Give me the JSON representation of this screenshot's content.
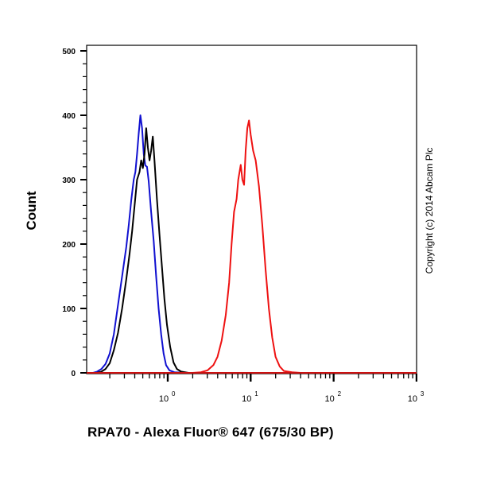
{
  "chart_data": {
    "type": "line",
    "title": "",
    "xlabel": "RPA70 - Alexa Fluor® 647 (675/30 BP)",
    "ylabel": "Count",
    "xscale": "log",
    "xlim_log10": [
      -1,
      3
    ],
    "ylim": [
      0,
      500
    ],
    "y_ticks": [
      0,
      100,
      200,
      300,
      400,
      500
    ],
    "y_minor_step": 20,
    "x_tick_labels": [
      {
        "base": "10",
        "exp": "0",
        "log10": 0
      },
      {
        "base": "10",
        "exp": "1",
        "log10": 1
      },
      {
        "base": "10",
        "exp": "2",
        "log10": 2
      },
      {
        "base": "10",
        "exp": "3",
        "log10": 3
      }
    ],
    "grid": false,
    "legend": null,
    "annotation": "Copyright (c) 2014 Abcam Plc",
    "series": [
      {
        "name": "blue-histogram",
        "color": "#1010d0",
        "points_log10x_count": [
          [
            -1.0,
            0
          ],
          [
            -0.9,
            0
          ],
          [
            -0.85,
            2
          ],
          [
            -0.8,
            6
          ],
          [
            -0.75,
            14
          ],
          [
            -0.7,
            30
          ],
          [
            -0.65,
            60
          ],
          [
            -0.6,
            105
          ],
          [
            -0.55,
            150
          ],
          [
            -0.5,
            195
          ],
          [
            -0.47,
            230
          ],
          [
            -0.44,
            268
          ],
          [
            -0.41,
            300
          ],
          [
            -0.39,
            312
          ],
          [
            -0.37,
            340
          ],
          [
            -0.35,
            372
          ],
          [
            -0.33,
            400
          ],
          [
            -0.31,
            380
          ],
          [
            -0.29,
            340
          ],
          [
            -0.27,
            322
          ],
          [
            -0.25,
            320
          ],
          [
            -0.23,
            298
          ],
          [
            -0.2,
            250
          ],
          [
            -0.17,
            205
          ],
          [
            -0.14,
            150
          ],
          [
            -0.11,
            100
          ],
          [
            -0.08,
            60
          ],
          [
            -0.05,
            30
          ],
          [
            -0.02,
            12
          ],
          [
            0.02,
            4
          ],
          [
            0.08,
            1
          ],
          [
            0.2,
            0
          ],
          [
            0.6,
            0
          ],
          [
            1.0,
            0
          ],
          [
            2.0,
            0
          ],
          [
            3.0,
            0
          ]
        ]
      },
      {
        "name": "black-histogram",
        "color": "#000000",
        "points_log10x_count": [
          [
            -1.0,
            0
          ],
          [
            -0.85,
            0
          ],
          [
            -0.8,
            2
          ],
          [
            -0.75,
            6
          ],
          [
            -0.7,
            15
          ],
          [
            -0.65,
            35
          ],
          [
            -0.6,
            62
          ],
          [
            -0.55,
            100
          ],
          [
            -0.5,
            145
          ],
          [
            -0.46,
            185
          ],
          [
            -0.43,
            220
          ],
          [
            -0.4,
            260
          ],
          [
            -0.37,
            300
          ],
          [
            -0.34,
            312
          ],
          [
            -0.32,
            330
          ],
          [
            -0.3,
            318
          ],
          [
            -0.28,
            340
          ],
          [
            -0.26,
            380
          ],
          [
            -0.24,
            350
          ],
          [
            -0.22,
            330
          ],
          [
            -0.2,
            345
          ],
          [
            -0.18,
            367
          ],
          [
            -0.16,
            330
          ],
          [
            -0.13,
            270
          ],
          [
            -0.1,
            215
          ],
          [
            -0.07,
            165
          ],
          [
            -0.04,
            115
          ],
          [
            -0.01,
            75
          ],
          [
            0.03,
            40
          ],
          [
            0.07,
            16
          ],
          [
            0.11,
            6
          ],
          [
            0.16,
            2
          ],
          [
            0.25,
            0
          ],
          [
            1.0,
            0
          ],
          [
            2.0,
            0
          ],
          [
            3.0,
            0
          ]
        ]
      },
      {
        "name": "red-histogram",
        "color": "#ee1111",
        "points_log10x_count": [
          [
            -1.0,
            0
          ],
          [
            0.3,
            0
          ],
          [
            0.4,
            1
          ],
          [
            0.48,
            4
          ],
          [
            0.55,
            12
          ],
          [
            0.6,
            25
          ],
          [
            0.65,
            50
          ],
          [
            0.7,
            90
          ],
          [
            0.74,
            140
          ],
          [
            0.77,
            200
          ],
          [
            0.8,
            250
          ],
          [
            0.83,
            270
          ],
          [
            0.85,
            300
          ],
          [
            0.88,
            323
          ],
          [
            0.9,
            300
          ],
          [
            0.92,
            292
          ],
          [
            0.94,
            345
          ],
          [
            0.96,
            380
          ],
          [
            0.98,
            392
          ],
          [
            1.0,
            370
          ],
          [
            1.03,
            345
          ],
          [
            1.06,
            330
          ],
          [
            1.1,
            290
          ],
          [
            1.14,
            230
          ],
          [
            1.18,
            160
          ],
          [
            1.22,
            100
          ],
          [
            1.26,
            55
          ],
          [
            1.3,
            25
          ],
          [
            1.35,
            10
          ],
          [
            1.4,
            3
          ],
          [
            1.5,
            1
          ],
          [
            1.6,
            0
          ],
          [
            2.0,
            0
          ],
          [
            3.0,
            0
          ]
        ]
      }
    ]
  },
  "labels": {
    "ylabel": "Count",
    "xlabel": "RPA70 - Alexa Fluor® 647 (675/30 BP)",
    "copyright": "Copyright (c) 2014 Abcam Plc"
  }
}
